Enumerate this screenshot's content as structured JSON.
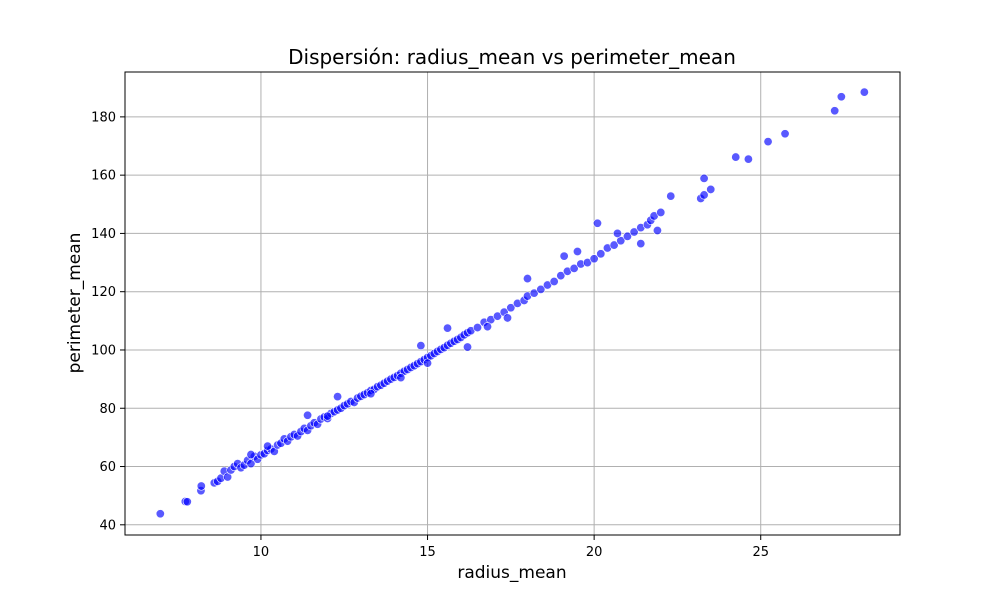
{
  "chart_data": {
    "type": "scatter",
    "title": "Dispersión: radius_mean vs perimeter_mean",
    "xlabel": "radius_mean",
    "ylabel": "perimeter_mean",
    "xlim": [
      5.92,
      29.18
    ],
    "ylim": [
      36.5,
      195.4
    ],
    "xticks": [
      10,
      15,
      20,
      25
    ],
    "yticks": [
      40,
      60,
      80,
      100,
      120,
      140,
      160,
      180
    ],
    "grid": true,
    "point_color": "#0000ff",
    "point_opacity": 0.65,
    "points": [
      [
        6.98,
        43.8
      ],
      [
        7.73,
        48.0
      ],
      [
        7.79,
        47.9
      ],
      [
        8.2,
        51.7
      ],
      [
        8.21,
        53.3
      ],
      [
        8.6,
        54.4
      ],
      [
        8.7,
        54.9
      ],
      [
        8.8,
        56.0
      ],
      [
        8.9,
        58.4
      ],
      [
        9.0,
        56.4
      ],
      [
        9.1,
        58.8
      ],
      [
        9.2,
        60.0
      ],
      [
        9.3,
        61.0
      ],
      [
        9.4,
        59.6
      ],
      [
        9.5,
        60.5
      ],
      [
        9.6,
        62.1
      ],
      [
        9.7,
        61.0
      ],
      [
        9.8,
        63.5
      ],
      [
        9.9,
        62.5
      ],
      [
        10.0,
        64.0
      ],
      [
        10.1,
        64.4
      ],
      [
        10.2,
        65.5
      ],
      [
        10.3,
        66.0
      ],
      [
        10.4,
        65.2
      ],
      [
        10.5,
        67.4
      ],
      [
        10.6,
        68.0
      ],
      [
        10.7,
        69.5
      ],
      [
        10.8,
        68.7
      ],
      [
        10.9,
        70.2
      ],
      [
        11.0,
        71.0
      ],
      [
        11.1,
        70.5
      ],
      [
        11.2,
        72.0
      ],
      [
        11.3,
        73.1
      ],
      [
        11.4,
        72.4
      ],
      [
        11.5,
        74.0
      ],
      [
        11.6,
        75.0
      ],
      [
        11.7,
        74.5
      ],
      [
        11.8,
        76.3
      ],
      [
        11.9,
        77.0
      ],
      [
        12.0,
        76.5
      ],
      [
        12.1,
        78.2
      ],
      [
        12.2,
        78.8
      ],
      [
        12.3,
        79.4
      ],
      [
        12.4,
        80.0
      ],
      [
        12.5,
        80.9
      ],
      [
        12.6,
        81.5
      ],
      [
        12.7,
        82.3
      ],
      [
        12.8,
        82.0
      ],
      [
        12.9,
        83.5
      ],
      [
        13.0,
        84.1
      ],
      [
        13.1,
        84.7
      ],
      [
        13.2,
        85.3
      ],
      [
        13.3,
        86.1
      ],
      [
        13.4,
        86.5
      ],
      [
        13.5,
        87.4
      ],
      [
        13.6,
        87.9
      ],
      [
        13.7,
        88.6
      ],
      [
        13.8,
        89.3
      ],
      [
        13.9,
        90.0
      ],
      [
        14.0,
        90.6
      ],
      [
        14.1,
        91.2
      ],
      [
        14.2,
        92.0
      ],
      [
        14.3,
        92.7
      ],
      [
        14.4,
        93.3
      ],
      [
        14.5,
        94.0
      ],
      [
        14.6,
        94.6
      ],
      [
        14.7,
        95.3
      ],
      [
        14.8,
        96.0
      ],
      [
        14.9,
        96.7
      ],
      [
        15.0,
        97.4
      ],
      [
        15.1,
        98.0
      ],
      [
        15.2,
        98.8
      ],
      [
        15.3,
        99.5
      ],
      [
        15.4,
        100.2
      ],
      [
        15.5,
        100.8
      ],
      [
        15.6,
        101.6
      ],
      [
        15.7,
        102.3
      ],
      [
        15.8,
        103.0
      ],
      [
        15.9,
        103.6
      ],
      [
        16.0,
        104.3
      ],
      [
        16.1,
        105.2
      ],
      [
        16.2,
        105.9
      ],
      [
        16.3,
        106.6
      ],
      [
        16.5,
        107.7
      ],
      [
        16.7,
        109.5
      ],
      [
        16.9,
        110.4
      ],
      [
        17.1,
        111.6
      ],
      [
        17.3,
        113.0
      ],
      [
        17.5,
        114.5
      ],
      [
        17.7,
        116.0
      ],
      [
        17.9,
        117.0
      ],
      [
        18.0,
        118.5
      ],
      [
        18.2,
        119.5
      ],
      [
        18.4,
        120.8
      ],
      [
        18.6,
        122.3
      ],
      [
        18.8,
        123.5
      ],
      [
        19.0,
        125.5
      ],
      [
        19.2,
        127.0
      ],
      [
        19.4,
        128.0
      ],
      [
        19.6,
        129.5
      ],
      [
        19.8,
        130.0
      ],
      [
        20.0,
        131.3
      ],
      [
        20.2,
        133.0
      ],
      [
        20.4,
        135.0
      ],
      [
        20.6,
        136.0
      ],
      [
        20.8,
        137.5
      ],
      [
        21.0,
        139.0
      ],
      [
        21.2,
        140.5
      ],
      [
        21.4,
        142.0
      ],
      [
        21.6,
        143.0
      ],
      [
        21.7,
        144.5
      ],
      [
        21.8,
        146.0
      ],
      [
        22.0,
        147.2
      ],
      [
        22.3,
        152.8
      ],
      [
        23.2,
        152.0
      ],
      [
        23.3,
        153.2
      ],
      [
        23.5,
        155.1
      ],
      [
        23.3,
        158.9
      ],
      [
        24.25,
        166.2
      ],
      [
        24.63,
        165.5
      ],
      [
        25.22,
        171.5
      ],
      [
        25.73,
        174.2
      ],
      [
        27.22,
        182.1
      ],
      [
        27.42,
        186.9
      ],
      [
        28.11,
        188.5
      ],
      [
        15.6,
        107.5
      ],
      [
        16.2,
        101.0
      ],
      [
        14.8,
        101.5
      ],
      [
        18.0,
        124.5
      ],
      [
        19.1,
        132.2
      ],
      [
        20.1,
        143.5
      ],
      [
        19.5,
        133.8
      ],
      [
        20.7,
        140.0
      ],
      [
        21.4,
        136.5
      ],
      [
        21.9,
        141.0
      ],
      [
        12.3,
        84.0
      ],
      [
        13.3,
        85.0
      ],
      [
        14.2,
        90.5
      ],
      [
        15.0,
        95.5
      ],
      [
        16.8,
        108.0
      ],
      [
        17.4,
        111.0
      ],
      [
        11.4,
        77.6
      ],
      [
        12.0,
        77.3
      ],
      [
        10.2,
        67.0
      ],
      [
        9.7,
        64.1
      ]
    ]
  }
}
